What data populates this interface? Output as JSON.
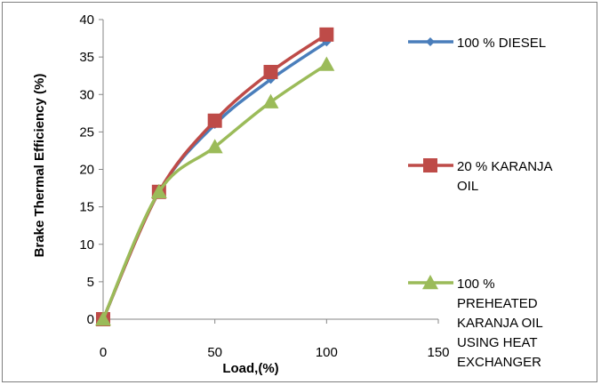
{
  "chart_data": {
    "type": "line",
    "title": "",
    "xlabel": "Load,(%)",
    "ylabel": "Brake Thermal Efficiency (%)",
    "xlim": [
      0,
      150
    ],
    "ylim": [
      0,
      40
    ],
    "x_ticks": [
      "0",
      "50",
      "100",
      "150"
    ],
    "y_ticks": [
      "0",
      "5",
      "10",
      "15",
      "20",
      "25",
      "30",
      "35",
      "40"
    ],
    "grid": false,
    "legend_position": "right",
    "x": [
      0,
      25,
      50,
      75,
      100
    ],
    "series": [
      {
        "name": "100 % DIESEL",
        "legend_lines": [
          "100 % DIESEL"
        ],
        "values": [
          0,
          17,
          26,
          32,
          37
        ],
        "color": "#4a7ebb",
        "marker": "diamond"
      },
      {
        "name": "20 % KARANJA OIL",
        "legend_lines": [
          "20 % KARANJA",
          "OIL"
        ],
        "values": [
          0,
          17,
          26.5,
          33,
          38
        ],
        "color": "#be4b48",
        "marker": "square"
      },
      {
        "name": "100 % PREHEATED KARANJA OIL USING HEAT EXCHANGER",
        "legend_lines": [
          "100 %",
          "PREHEATED",
          "KARANJA OIL",
          "USING HEAT",
          "EXCHANGER"
        ],
        "values": [
          0,
          17,
          23,
          29,
          34
        ],
        "color": "#9bbb59",
        "marker": "triangle"
      }
    ]
  }
}
